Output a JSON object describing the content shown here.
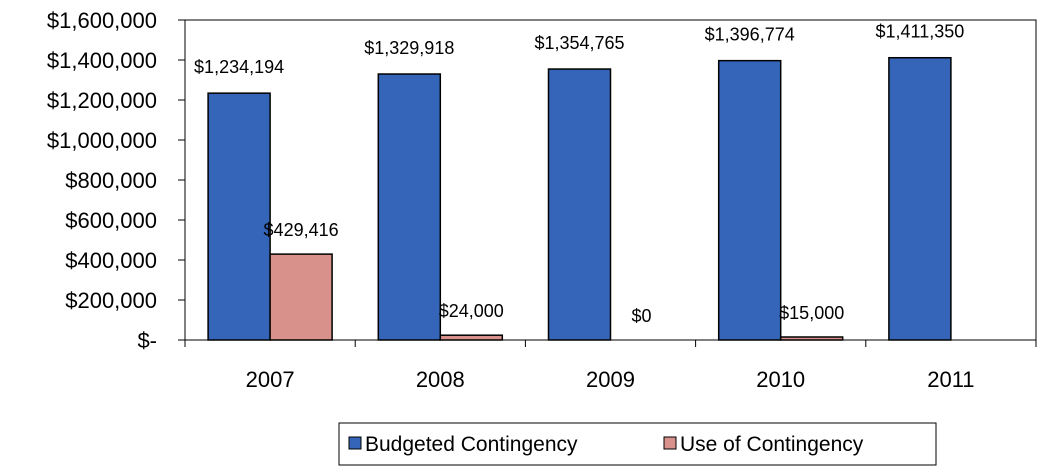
{
  "chart_data": {
    "type": "bar",
    "categories": [
      "2007",
      "2008",
      "2009",
      "2010",
      "2011"
    ],
    "series": [
      {
        "name": "Budgeted Contingency",
        "values": [
          1234194,
          1329918,
          1354765,
          1396774,
          1411350
        ],
        "labels": [
          "$1,234,194",
          "$1,329,918",
          "$1,354,765",
          "$1,396,774",
          "$1,411,350"
        ],
        "color": "#3465B8"
      },
      {
        "name": "Use of Contingency",
        "values": [
          429416,
          24000,
          0,
          15000,
          0
        ],
        "labels": [
          "$429,416",
          "$24,000",
          "$0",
          "$15,000",
          null
        ],
        "color": "#D9918C"
      }
    ],
    "ylim": [
      0,
      1600000
    ],
    "yticks": [
      0,
      200000,
      400000,
      600000,
      800000,
      1000000,
      1200000,
      1400000,
      1600000
    ],
    "ytick_labels": [
      "$-",
      "$200,000",
      "$400,000",
      "$600,000",
      "$800,000",
      "$1,000,000",
      "$1,200,000",
      "$1,400,000",
      "$1,600,000"
    ],
    "grid": false,
    "legend": "bottom",
    "title": "",
    "xlabel": "",
    "ylabel": ""
  }
}
